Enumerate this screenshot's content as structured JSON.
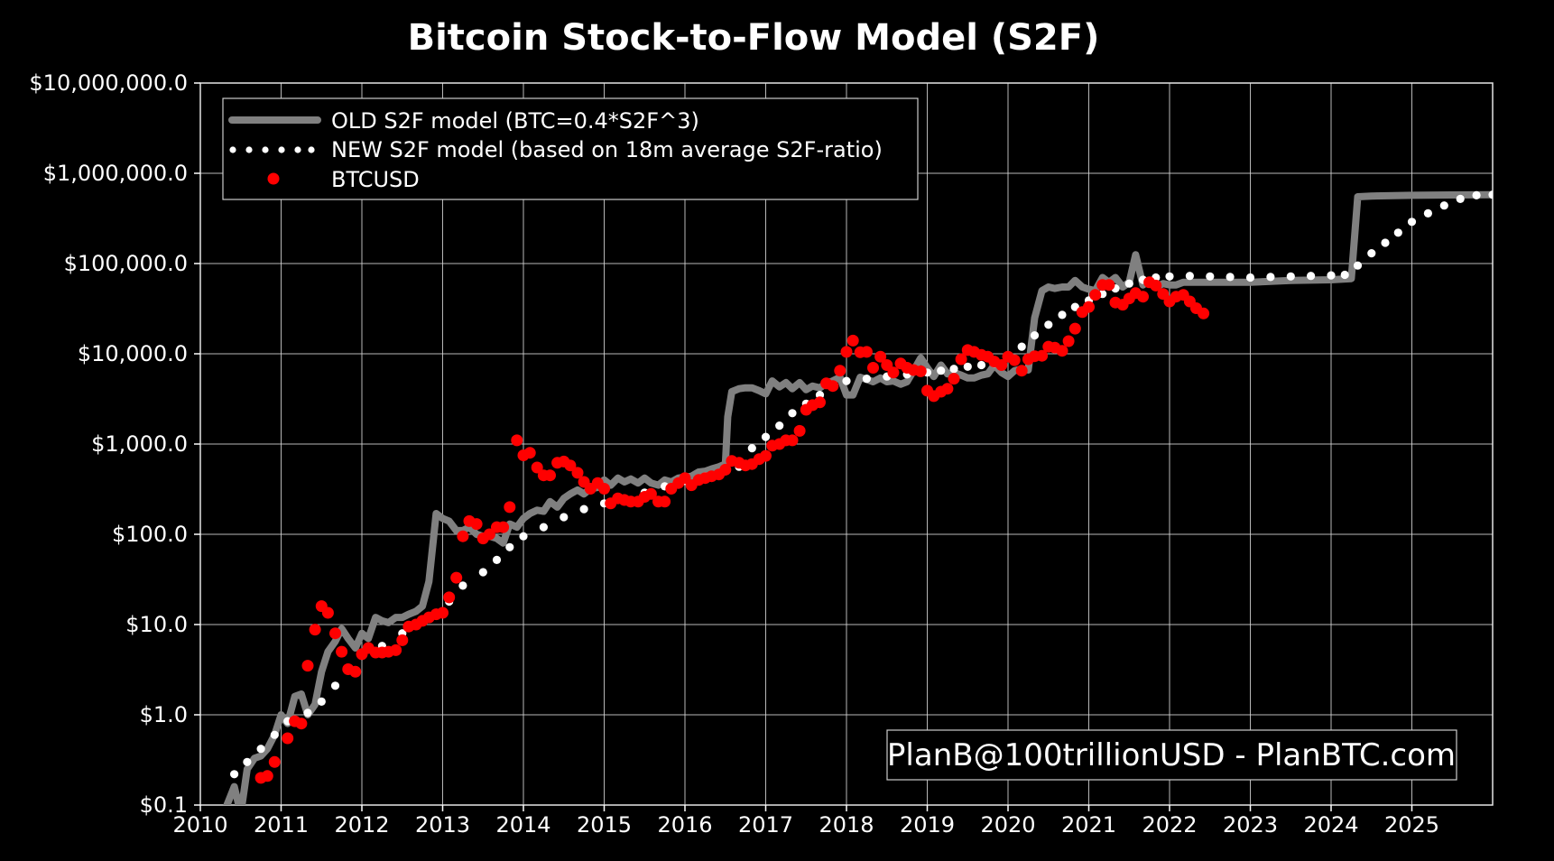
{
  "chart_data": {
    "type": "scatter",
    "title": "Bitcoin Stock-to-Flow Model (S2F)",
    "xlabel": "",
    "ylabel": "",
    "x_scale": "linear",
    "y_scale": "log",
    "xlim": [
      2010,
      2026
    ],
    "ylim": [
      0.1,
      10000000
    ],
    "x_ticks": [
      2010,
      2011,
      2012,
      2013,
      2014,
      2015,
      2016,
      2017,
      2018,
      2019,
      2020,
      2021,
      2022,
      2023,
      2024,
      2025
    ],
    "x_tick_labels": [
      "2010",
      "2011",
      "2012",
      "2013",
      "2014",
      "2015",
      "2016",
      "2017",
      "2018",
      "2019",
      "2020",
      "2021",
      "2022",
      "2023",
      "2024",
      "2025"
    ],
    "y_ticks": [
      0.1,
      1,
      10,
      100,
      1000,
      10000,
      100000,
      1000000,
      10000000
    ],
    "y_tick_labels": [
      "$0.1",
      "$1.0",
      "$10.0",
      "$100.0",
      "$1,000.0",
      "$10,000.0",
      "$100,000.0",
      "$1,000,000.0",
      "$10,000,000.0"
    ],
    "grid": true,
    "legend_position": "top-left",
    "annotation": "PlanB@100trillionUSD - PlanBTC.com",
    "colors": {
      "background": "#000000",
      "old_model": "#808080",
      "new_model": "#ffffff",
      "btcusd": "#ff0000",
      "grid": "#d8d8d8",
      "text": "#ffffff"
    },
    "series": [
      {
        "name": "OLD S2F model (BTC=0.4*S2F^3)",
        "style": "line",
        "x": [
          2010.33,
          2010.42,
          2010.5,
          2010.58,
          2010.67,
          2010.75,
          2010.83,
          2010.92,
          2011.0,
          2011.08,
          2011.17,
          2011.25,
          2011.33,
          2011.42,
          2011.5,
          2011.58,
          2011.67,
          2011.75,
          2011.83,
          2011.92,
          2012.0,
          2012.08,
          2012.17,
          2012.25,
          2012.33,
          2012.42,
          2012.5,
          2012.58,
          2012.67,
          2012.75,
          2012.83,
          2012.92,
          2013.0,
          2013.08,
          2013.17,
          2013.25,
          2013.33,
          2013.42,
          2013.5,
          2013.58,
          2013.67,
          2013.75,
          2013.83,
          2013.92,
          2014.0,
          2014.08,
          2014.17,
          2014.25,
          2014.33,
          2014.42,
          2014.5,
          2014.58,
          2014.67,
          2014.75,
          2014.83,
          2014.92,
          2015.0,
          2015.08,
          2015.17,
          2015.25,
          2015.33,
          2015.42,
          2015.5,
          2015.58,
          2015.67,
          2015.75,
          2015.83,
          2015.92,
          2016.0,
          2016.08,
          2016.17,
          2016.25,
          2016.33,
          2016.42,
          2016.5,
          2016.53,
          2016.58,
          2016.67,
          2016.75,
          2016.83,
          2016.92,
          2017.0,
          2017.08,
          2017.17,
          2017.25,
          2017.33,
          2017.42,
          2017.5,
          2017.58,
          2017.67,
          2017.75,
          2017.83,
          2017.92,
          2018.0,
          2018.08,
          2018.17,
          2018.25,
          2018.33,
          2018.42,
          2018.5,
          2018.58,
          2018.67,
          2018.75,
          2018.83,
          2018.92,
          2019.0,
          2019.08,
          2019.17,
          2019.25,
          2019.33,
          2019.42,
          2019.5,
          2019.58,
          2019.67,
          2019.75,
          2019.83,
          2019.92,
          2020.0,
          2020.08,
          2020.17,
          2020.25,
          2020.33,
          2020.42,
          2020.5,
          2020.58,
          2020.67,
          2020.75,
          2020.83,
          2020.92,
          2021.0,
          2021.08,
          2021.17,
          2021.25,
          2021.33,
          2021.42,
          2021.5,
          2021.58,
          2021.67,
          2021.75,
          2021.83,
          2021.92,
          2022.0,
          2022.08,
          2022.17,
          2022.25,
          2022.33,
          2022.5,
          2023.0,
          2023.5,
          2024.0,
          2024.25,
          2024.33,
          2024.5,
          2025.0,
          2025.5,
          2026.0
        ],
        "values": [
          0.1,
          0.16,
          0.08,
          0.25,
          0.33,
          0.35,
          0.42,
          0.6,
          1.0,
          0.8,
          1.6,
          1.7,
          1.0,
          1.3,
          3.0,
          5.0,
          6.5,
          9.0,
          7.0,
          5.5,
          8.0,
          7.0,
          12.0,
          11.0,
          10.5,
          12.0,
          12.0,
          13.0,
          14.0,
          16.0,
          30.0,
          170.0,
          150.0,
          140.0,
          110.0,
          110.0,
          120.0,
          100.0,
          95.0,
          95.0,
          90.0,
          80.0,
          130.0,
          120.0,
          150.0,
          170.0,
          185.0,
          180.0,
          230.0,
          200.0,
          250.0,
          280.0,
          310.0,
          280.0,
          320.0,
          330.0,
          400.0,
          350.0,
          420.0,
          380.0,
          410.0,
          370.0,
          420.0,
          370.0,
          350.0,
          400.0,
          380.0,
          420.0,
          430.0,
          440.0,
          490.0,
          500.0,
          530.0,
          560.0,
          600.0,
          2000.0,
          3800.0,
          4100.0,
          4200.0,
          4200.0,
          3900.0,
          3600.0,
          5000.0,
          4300.0,
          4800.0,
          4100.0,
          4800.0,
          4000.0,
          4400.0,
          4200.0,
          4700.0,
          5000.0,
          5500.0,
          3500.0,
          3500.0,
          5500.0,
          5200.0,
          4900.0,
          5400.0,
          4900.0,
          5000.0,
          4600.0,
          4900.0,
          6500.0,
          9000.0,
          7000.0,
          5600.0,
          7500.0,
          6000.0,
          6200.0,
          5800.0,
          5400.0,
          5400.0,
          5800.0,
          6000.0,
          7500.0,
          6200.0,
          5600.0,
          6500.0,
          6800.0,
          6600.0,
          25000.0,
          50000.0,
          55000.0,
          53000.0,
          55000.0,
          55000.0,
          65000.0,
          55000.0,
          52000.0,
          50000.0,
          70000.0,
          62000.0,
          70000.0,
          55000.0,
          62000.0,
          125000.0,
          58000.0,
          65000.0,
          55000.0,
          60000.0,
          58000.0,
          58000.0,
          62000.0,
          62000.0,
          62000.0,
          62000.0,
          62000.0,
          65000.0,
          66000.0,
          68000.0,
          550000.0,
          560000.0,
          570000.0,
          575000.0,
          580000.0
        ]
      },
      {
        "name": "NEW S2F model (based on 18m average S2F-ratio)",
        "style": "dots",
        "x": [
          2010.42,
          2010.58,
          2010.75,
          2010.92,
          2011.08,
          2011.33,
          2011.5,
          2011.67,
          2011.83,
          2012.0,
          2012.25,
          2012.5,
          2012.75,
          2012.92,
          2013.08,
          2013.25,
          2013.5,
          2013.67,
          2013.83,
          2014.0,
          2014.25,
          2014.5,
          2014.75,
          2015.0,
          2015.25,
          2015.5,
          2015.75,
          2016.0,
          2016.25,
          2016.5,
          2016.67,
          2016.83,
          2017.0,
          2017.17,
          2017.33,
          2017.5,
          2017.67,
          2017.83,
          2018.0,
          2018.25,
          2018.5,
          2018.75,
          2019.0,
          2019.17,
          2019.33,
          2019.5,
          2019.67,
          2019.83,
          2020.0,
          2020.17,
          2020.33,
          2020.5,
          2020.67,
          2020.83,
          2021.0,
          2021.17,
          2021.33,
          2021.5,
          2021.67,
          2021.83,
          2022.0,
          2022.25,
          2022.5,
          2022.75,
          2023.0,
          2023.25,
          2023.5,
          2023.75,
          2024.0,
          2024.17,
          2024.33,
          2024.5,
          2024.67,
          2024.83,
          2025.0,
          2025.2,
          2025.4,
          2025.6,
          2025.8,
          2026.0
        ],
        "values": [
          0.22,
          0.3,
          0.42,
          0.6,
          0.85,
          1.05,
          1.4,
          2.1,
          3.2,
          4.5,
          5.8,
          8.0,
          11.0,
          13.5,
          18.0,
          27.0,
          38.0,
          52.0,
          72.0,
          95.0,
          120.0,
          155.0,
          190.0,
          220.0,
          250.0,
          290.0,
          340.0,
          390.0,
          440.0,
          500.0,
          560.0,
          900.0,
          1200.0,
          1600.0,
          2200.0,
          2800.0,
          3500.0,
          4300.0,
          5000.0,
          5300.0,
          5600.0,
          5900.0,
          6200.0,
          6500.0,
          6800.0,
          7200.0,
          7500.0,
          7800.0,
          9000.0,
          12000.0,
          16000.0,
          21000.0,
          27000.0,
          33000.0,
          39000.0,
          46000.0,
          53000.0,
          60000.0,
          66000.0,
          70000.0,
          72000.0,
          73000.0,
          72000.0,
          71000.0,
          70000.0,
          71000.0,
          72000.0,
          73000.0,
          74000.0,
          75000.0,
          95000.0,
          130000.0,
          170000.0,
          220000.0,
          290000.0,
          360000.0,
          440000.0,
          520000.0,
          570000.0,
          580000.0
        ]
      },
      {
        "name": "BTCUSD",
        "style": "dots",
        "x": [
          2010.75,
          2010.83,
          2010.92,
          2011.08,
          2011.17,
          2011.25,
          2011.33,
          2011.42,
          2011.5,
          2011.58,
          2011.67,
          2011.75,
          2011.83,
          2011.92,
          2012.0,
          2012.08,
          2012.17,
          2012.25,
          2012.33,
          2012.42,
          2012.5,
          2012.58,
          2012.67,
          2012.75,
          2012.83,
          2012.92,
          2013.0,
          2013.08,
          2013.17,
          2013.25,
          2013.33,
          2013.42,
          2013.5,
          2013.58,
          2013.67,
          2013.75,
          2013.83,
          2013.92,
          2014.0,
          2014.08,
          2014.17,
          2014.25,
          2014.33,
          2014.42,
          2014.5,
          2014.58,
          2014.67,
          2014.75,
          2014.83,
          2014.92,
          2015.0,
          2015.08,
          2015.17,
          2015.25,
          2015.33,
          2015.42,
          2015.5,
          2015.58,
          2015.67,
          2015.75,
          2015.83,
          2015.92,
          2016.0,
          2016.08,
          2016.17,
          2016.25,
          2016.33,
          2016.42,
          2016.5,
          2016.58,
          2016.67,
          2016.75,
          2016.83,
          2016.92,
          2017.0,
          2017.08,
          2017.17,
          2017.25,
          2017.33,
          2017.42,
          2017.5,
          2017.58,
          2017.67,
          2017.75,
          2017.83,
          2017.92,
          2018.0,
          2018.08,
          2018.17,
          2018.25,
          2018.33,
          2018.42,
          2018.5,
          2018.58,
          2018.67,
          2018.75,
          2018.83,
          2018.92,
          2019.0,
          2019.08,
          2019.17,
          2019.25,
          2019.33,
          2019.42,
          2019.5,
          2019.58,
          2019.67,
          2019.75,
          2019.83,
          2019.92,
          2020.0,
          2020.08,
          2020.17,
          2020.25,
          2020.33,
          2020.42,
          2020.5,
          2020.58,
          2020.67,
          2020.75,
          2020.83,
          2020.92,
          2021.0,
          2021.08,
          2021.17,
          2021.25,
          2021.33,
          2021.42,
          2021.5,
          2021.58,
          2021.67,
          2021.75,
          2021.83,
          2021.92,
          2022.0,
          2022.08,
          2022.17,
          2022.25,
          2022.33,
          2022.42
        ],
        "values": [
          0.2,
          0.21,
          0.3,
          0.55,
          0.85,
          0.8,
          3.5,
          8.8,
          16.0,
          13.5,
          8.0,
          5.0,
          3.2,
          3.0,
          4.7,
          5.5,
          4.9,
          4.9,
          5.0,
          5.2,
          6.7,
          9.5,
          10.0,
          11.0,
          12.0,
          13.0,
          13.5,
          20.0,
          33.0,
          95.0,
          140.0,
          130.0,
          90.0,
          100.0,
          120.0,
          120.0,
          200.0,
          1100.0,
          750.0,
          800.0,
          550.0,
          450.0,
          450.0,
          620.0,
          640.0,
          580.0,
          480.0,
          380.0,
          320.0,
          370.0,
          320.0,
          220.0,
          250.0,
          240.0,
          230.0,
          230.0,
          260.0,
          280.0,
          230.0,
          230.0,
          320.0,
          370.0,
          420.0,
          350.0,
          400.0,
          420.0,
          440.0,
          460.0,
          520.0,
          650.0,
          620.0,
          580.0,
          600.0,
          680.0,
          740.0,
          960.0,
          1000.0,
          1100.0,
          1100.0,
          1400.0,
          2400.0,
          2700.0,
          2900.0,
          4700.0,
          4400.0,
          6500.0,
          10500.0,
          14000.0,
          10400.0,
          10500.0,
          7000.0,
          9300.0,
          7500.0,
          6200.0,
          7800.0,
          7000.0,
          6600.0,
          6400.0,
          3900.0,
          3400.0,
          3800.0,
          4100.0,
          5300.0,
          8700.0,
          11000.0,
          10500.0,
          9700.0,
          9300.0,
          8200.0,
          7500.0,
          9300.0,
          8500.0,
          6500.0,
          8700.0,
          9400.0,
          9500.0,
          12000.0,
          11700.0,
          10800.0,
          13800.0,
          19000.0,
          29000.0,
          33000.0,
          45000.0,
          58000.0,
          58000.0,
          37000.0,
          35000.0,
          41000.0,
          47000.0,
          43000.0,
          62000.0,
          57000.0,
          46000.0,
          38000.0,
          43000.0,
          45000.0,
          38000.0,
          32000.0,
          28000.0
        ]
      }
    ]
  }
}
